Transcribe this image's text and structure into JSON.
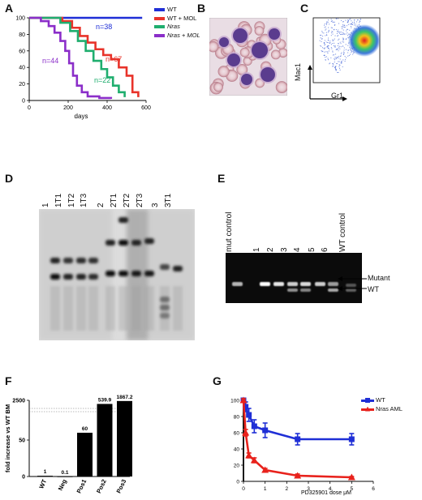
{
  "panels": {
    "A": {
      "letter": "A",
      "chart_data": {
        "type": "line",
        "xlabel": "days",
        "ylabel": "",
        "xlim": [
          0,
          600
        ],
        "ylim": [
          0,
          100
        ],
        "x_ticks": [
          "0",
          "200",
          "400",
          "600"
        ],
        "y_ticks": [
          "0",
          "20",
          "40",
          "60",
          "80",
          "100"
        ],
        "legend_position": "right",
        "series": [
          {
            "name": "WT",
            "color": "#1f2fd6",
            "count_label": "n=38",
            "points": [
              [
                0,
                100
              ],
              [
                580,
                100
              ]
            ]
          },
          {
            "name": "WT + MOL",
            "color": "#e8332a",
            "count_label": "n=67",
            "points": [
              [
                0,
                100
              ],
              [
                120,
                100
              ],
              [
                170,
                96
              ],
              [
                220,
                88
              ],
              [
                260,
                78
              ],
              [
                300,
                70
              ],
              [
                340,
                62
              ],
              [
                380,
                55
              ],
              [
                420,
                50
              ],
              [
                460,
                40
              ],
              [
                500,
                30
              ],
              [
                530,
                10
              ],
              [
                560,
                4
              ]
            ]
          },
          {
            "name": "Nras",
            "color": "#1fae6e",
            "count_label": "n=22",
            "points": [
              [
                0,
                100
              ],
              [
                110,
                100
              ],
              [
                160,
                94
              ],
              [
                210,
                84
              ],
              [
                250,
                72
              ],
              [
                290,
                60
              ],
              [
                330,
                48
              ],
              [
                370,
                38
              ],
              [
                400,
                28
              ],
              [
                430,
                18
              ],
              [
                460,
                10
              ],
              [
                490,
                4
              ]
            ]
          },
          {
            "name": "Nras + MOL",
            "color": "#8b2ec9",
            "count_label": "n=44",
            "points": [
              [
                0,
                100
              ],
              [
                60,
                96
              ],
              [
                100,
                90
              ],
              [
                130,
                82
              ],
              [
                160,
                72
              ],
              [
                185,
                60
              ],
              [
                205,
                45
              ],
              [
                225,
                30
              ],
              [
                245,
                18
              ],
              [
                270,
                10
              ],
              [
                300,
                5
              ],
              [
                360,
                3
              ],
              [
                420,
                2
              ]
            ]
          }
        ]
      }
    },
    "B": {
      "letter": "B"
    },
    "C": {
      "letter": "C",
      "xlabel": "Gr1",
      "ylabel": "Mac1"
    },
    "D": {
      "letter": "D",
      "lanes": [
        "1",
        "1T1",
        "1T2",
        "1T3",
        "2",
        "2T1",
        "2T2",
        "2T3",
        "3",
        "3T1"
      ]
    },
    "E": {
      "letter": "E",
      "lanes": [
        "mut control",
        "1",
        "2",
        "3",
        "4",
        "5",
        "6",
        "WT control"
      ],
      "band_labels": [
        "Mutant",
        "WT"
      ]
    },
    "F": {
      "letter": "F",
      "chart_data": {
        "type": "bar",
        "categories": [
          "WT",
          "Neg",
          "Pos1",
          "Pos2",
          "Pos3"
        ],
        "values": [
          1,
          0.1,
          60,
          539.9,
          1867.2
        ],
        "value_labels": [
          "1",
          "0.1",
          "60",
          "539.9",
          "1867.2"
        ],
        "ylabel": "fold increase vs WT BM",
        "y_ticks": [
          "0",
          "50",
          "2500"
        ],
        "axis_break": true
      }
    },
    "G": {
      "letter": "G",
      "chart_data": {
        "type": "line",
        "xlabel": "PD325901 dose μM",
        "xlim": [
          0,
          6
        ],
        "ylim": [
          0,
          100
        ],
        "x_ticks": [
          "0",
          "1",
          "2",
          "3",
          "4",
          "5",
          "6"
        ],
        "y_ticks": [
          "0",
          "20",
          "40",
          "60",
          "80",
          "100"
        ],
        "legend_position": "top-right",
        "series": [
          {
            "name": "WT",
            "color": "#1f2fd6",
            "marker": "square",
            "x": [
              0,
              0.1,
              0.25,
              0.5,
              1,
              2.5,
              5
            ],
            "y": [
              100,
              92,
              82,
              68,
              63,
              52,
              52
            ],
            "err": [
              2,
              6,
              8,
              8,
              9,
              7,
              7
            ]
          },
          {
            "name": "Nras AML",
            "color": "#e8221c",
            "marker": "triangle",
            "x": [
              0,
              0.1,
              0.25,
              0.5,
              1,
              2.5,
              5
            ],
            "y": [
              100,
              60,
              32,
              26,
              14,
              7,
              5
            ],
            "err": [
              2,
              4,
              3,
              3,
              2,
              2,
              1
            ]
          }
        ]
      }
    }
  }
}
